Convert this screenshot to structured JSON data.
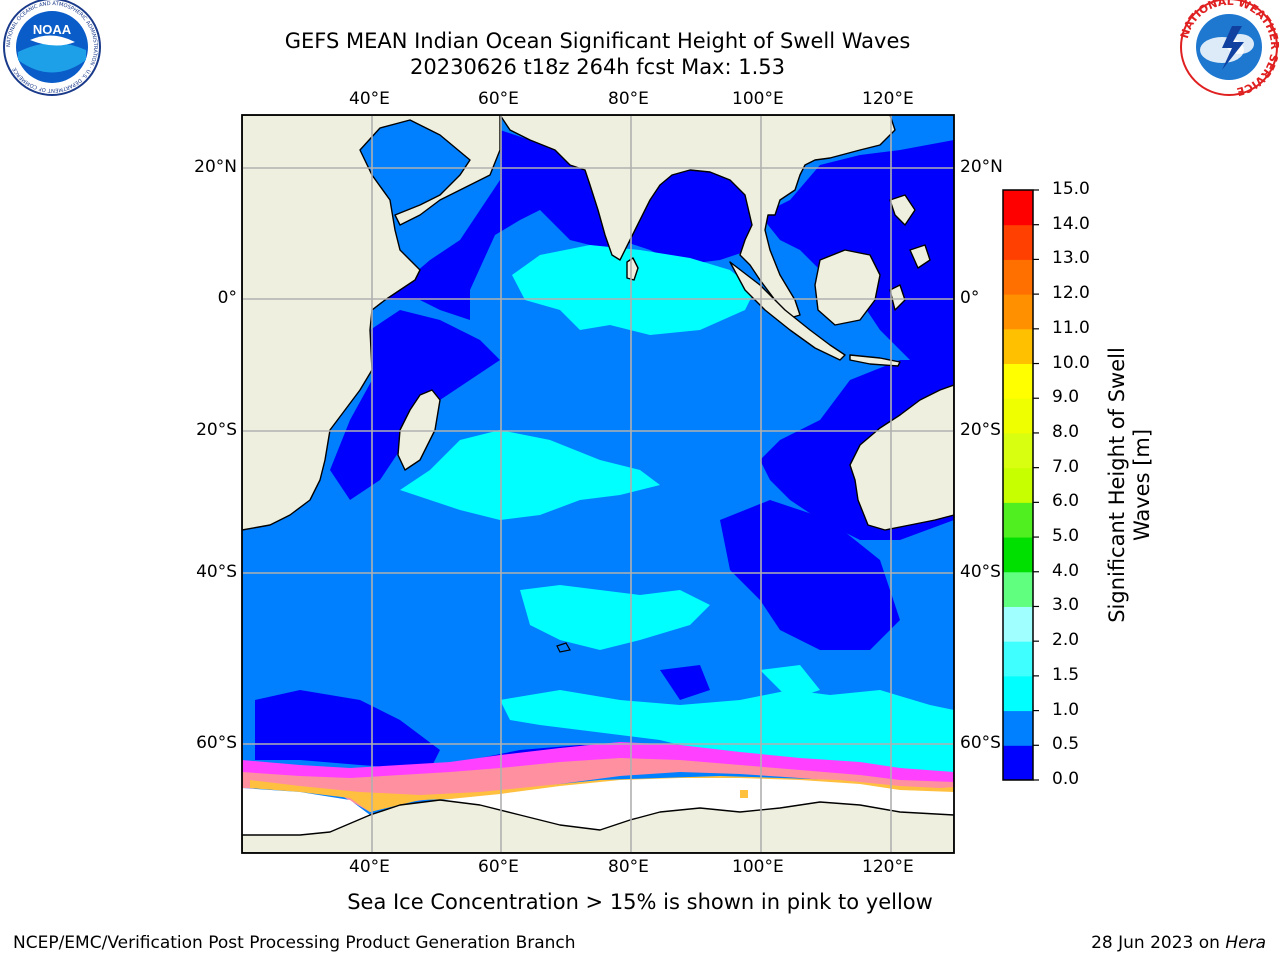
{
  "header": {
    "title_line1": "GEFS MEAN Indian Ocean Significant Height of Swell Waves",
    "title_line2": "20230626 t18z 264h fcst   Max: 1.53"
  },
  "logos": {
    "left": "noaa-logo",
    "left_text": "NATIONAL OCEANIC AND ATMOSPHERIC ADMINISTRATION · U.S. DEPARTMENT OF COMMERCE",
    "left_abbrev": "NOAA",
    "right": "national-weather-service-logo",
    "right_text": "NATIONAL WEATHER SERVICE"
  },
  "map": {
    "lon_labels": [
      "40°E",
      "60°E",
      "80°E",
      "100°E",
      "120°E"
    ],
    "lat_labels": [
      "20°N",
      "0°",
      "20°S",
      "40°S",
      "60°S"
    ],
    "extent": {
      "lon": [
        20,
        130
      ],
      "lat": [
        -72,
        27
      ]
    },
    "colors": {
      "land": "#efefdf",
      "ice_free_sea_white": "#ffffff",
      "grid": "#b0b0b0"
    }
  },
  "colorbar": {
    "title_line1": "Significant Height of Swell",
    "title_line2": "Waves [m]",
    "tick_labels": [
      "0.0",
      "0.5",
      "1.0",
      "1.5",
      "2.0",
      "3.0",
      "4.0",
      "5.0",
      "6.0",
      "7.0",
      "8.0",
      "9.0",
      "10.0",
      "11.0",
      "12.0",
      "13.0",
      "14.0",
      "15.0"
    ],
    "bins": [
      {
        "from": 0.0,
        "to": 0.5,
        "color": "#0000ff"
      },
      {
        "from": 0.5,
        "to": 1.0,
        "color": "#0080ff"
      },
      {
        "from": 1.0,
        "to": 1.5,
        "color": "#00ffff"
      },
      {
        "from": 1.5,
        "to": 2.0,
        "color": "#40ffff"
      },
      {
        "from": 2.0,
        "to": 3.0,
        "color": "#a0ffff"
      },
      {
        "from": 3.0,
        "to": 4.0,
        "color": "#60ff80"
      },
      {
        "from": 4.0,
        "to": 5.0,
        "color": "#00e000"
      },
      {
        "from": 5.0,
        "to": 6.0,
        "color": "#50f020"
      },
      {
        "from": 6.0,
        "to": 7.0,
        "color": "#c8ff00"
      },
      {
        "from": 7.0,
        "to": 8.0,
        "color": "#d8ff10"
      },
      {
        "from": 8.0,
        "to": 9.0,
        "color": "#f0ff00"
      },
      {
        "from": 9.0,
        "to": 10.0,
        "color": "#ffff00"
      },
      {
        "from": 10.0,
        "to": 11.0,
        "color": "#ffc000"
      },
      {
        "from": 11.0,
        "to": 12.0,
        "color": "#ff9000"
      },
      {
        "from": 12.0,
        "to": 13.0,
        "color": "#ff7000"
      },
      {
        "from": 13.0,
        "to": 14.0,
        "color": "#ff4000"
      },
      {
        "from": 14.0,
        "to": 15.0,
        "color": "#ff0000"
      }
    ]
  },
  "notes": {
    "sea_ice": "Sea Ice Concentration > 15% is shown in pink to yellow"
  },
  "footer": {
    "left": "NCEP/EMC/Verification Post Processing Product Generation Branch",
    "right_prefix": "28 Jun 2023 on ",
    "right_host": "Hera"
  }
}
